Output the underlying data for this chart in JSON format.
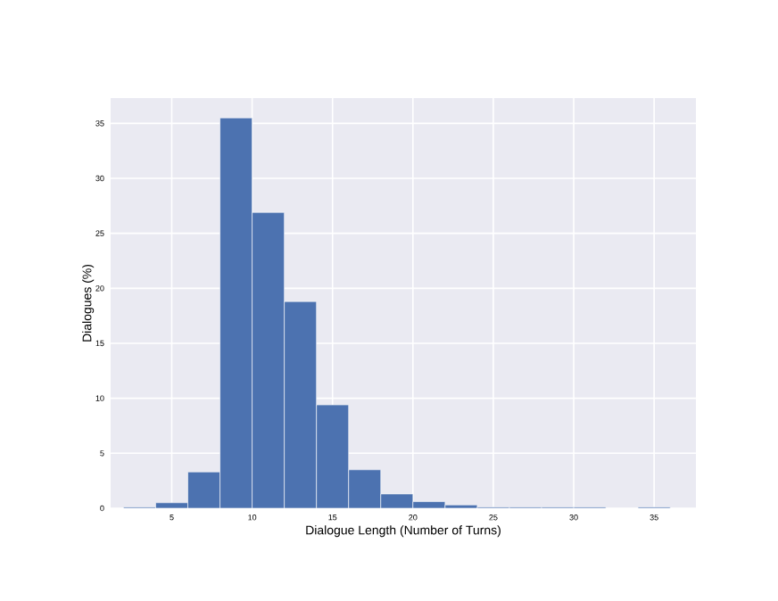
{
  "chart_data": {
    "type": "histogram",
    "xlabel": "Dialogue Length (Number of Turns)",
    "ylabel": "Dialogues (%)",
    "bins": [
      2,
      4,
      6,
      8,
      10,
      12,
      14,
      16,
      18,
      20,
      22,
      24,
      26,
      28,
      30,
      32,
      34,
      36
    ],
    "values": [
      0.1,
      0.5,
      3.3,
      35.5,
      26.9,
      18.8,
      9.4,
      3.5,
      1.3,
      0.6,
      0.3,
      0.1,
      0.1,
      0.1,
      0.1,
      null,
      0.1
    ],
    "color": "#4c72b0",
    "xlim": [
      1.2,
      37.6
    ],
    "ylim": [
      0,
      37.3
    ],
    "xticks": [
      5,
      10,
      15,
      20,
      25,
      30,
      35
    ],
    "yticks": [
      0,
      5,
      10,
      15,
      20,
      25,
      30,
      35
    ],
    "grid": true
  }
}
